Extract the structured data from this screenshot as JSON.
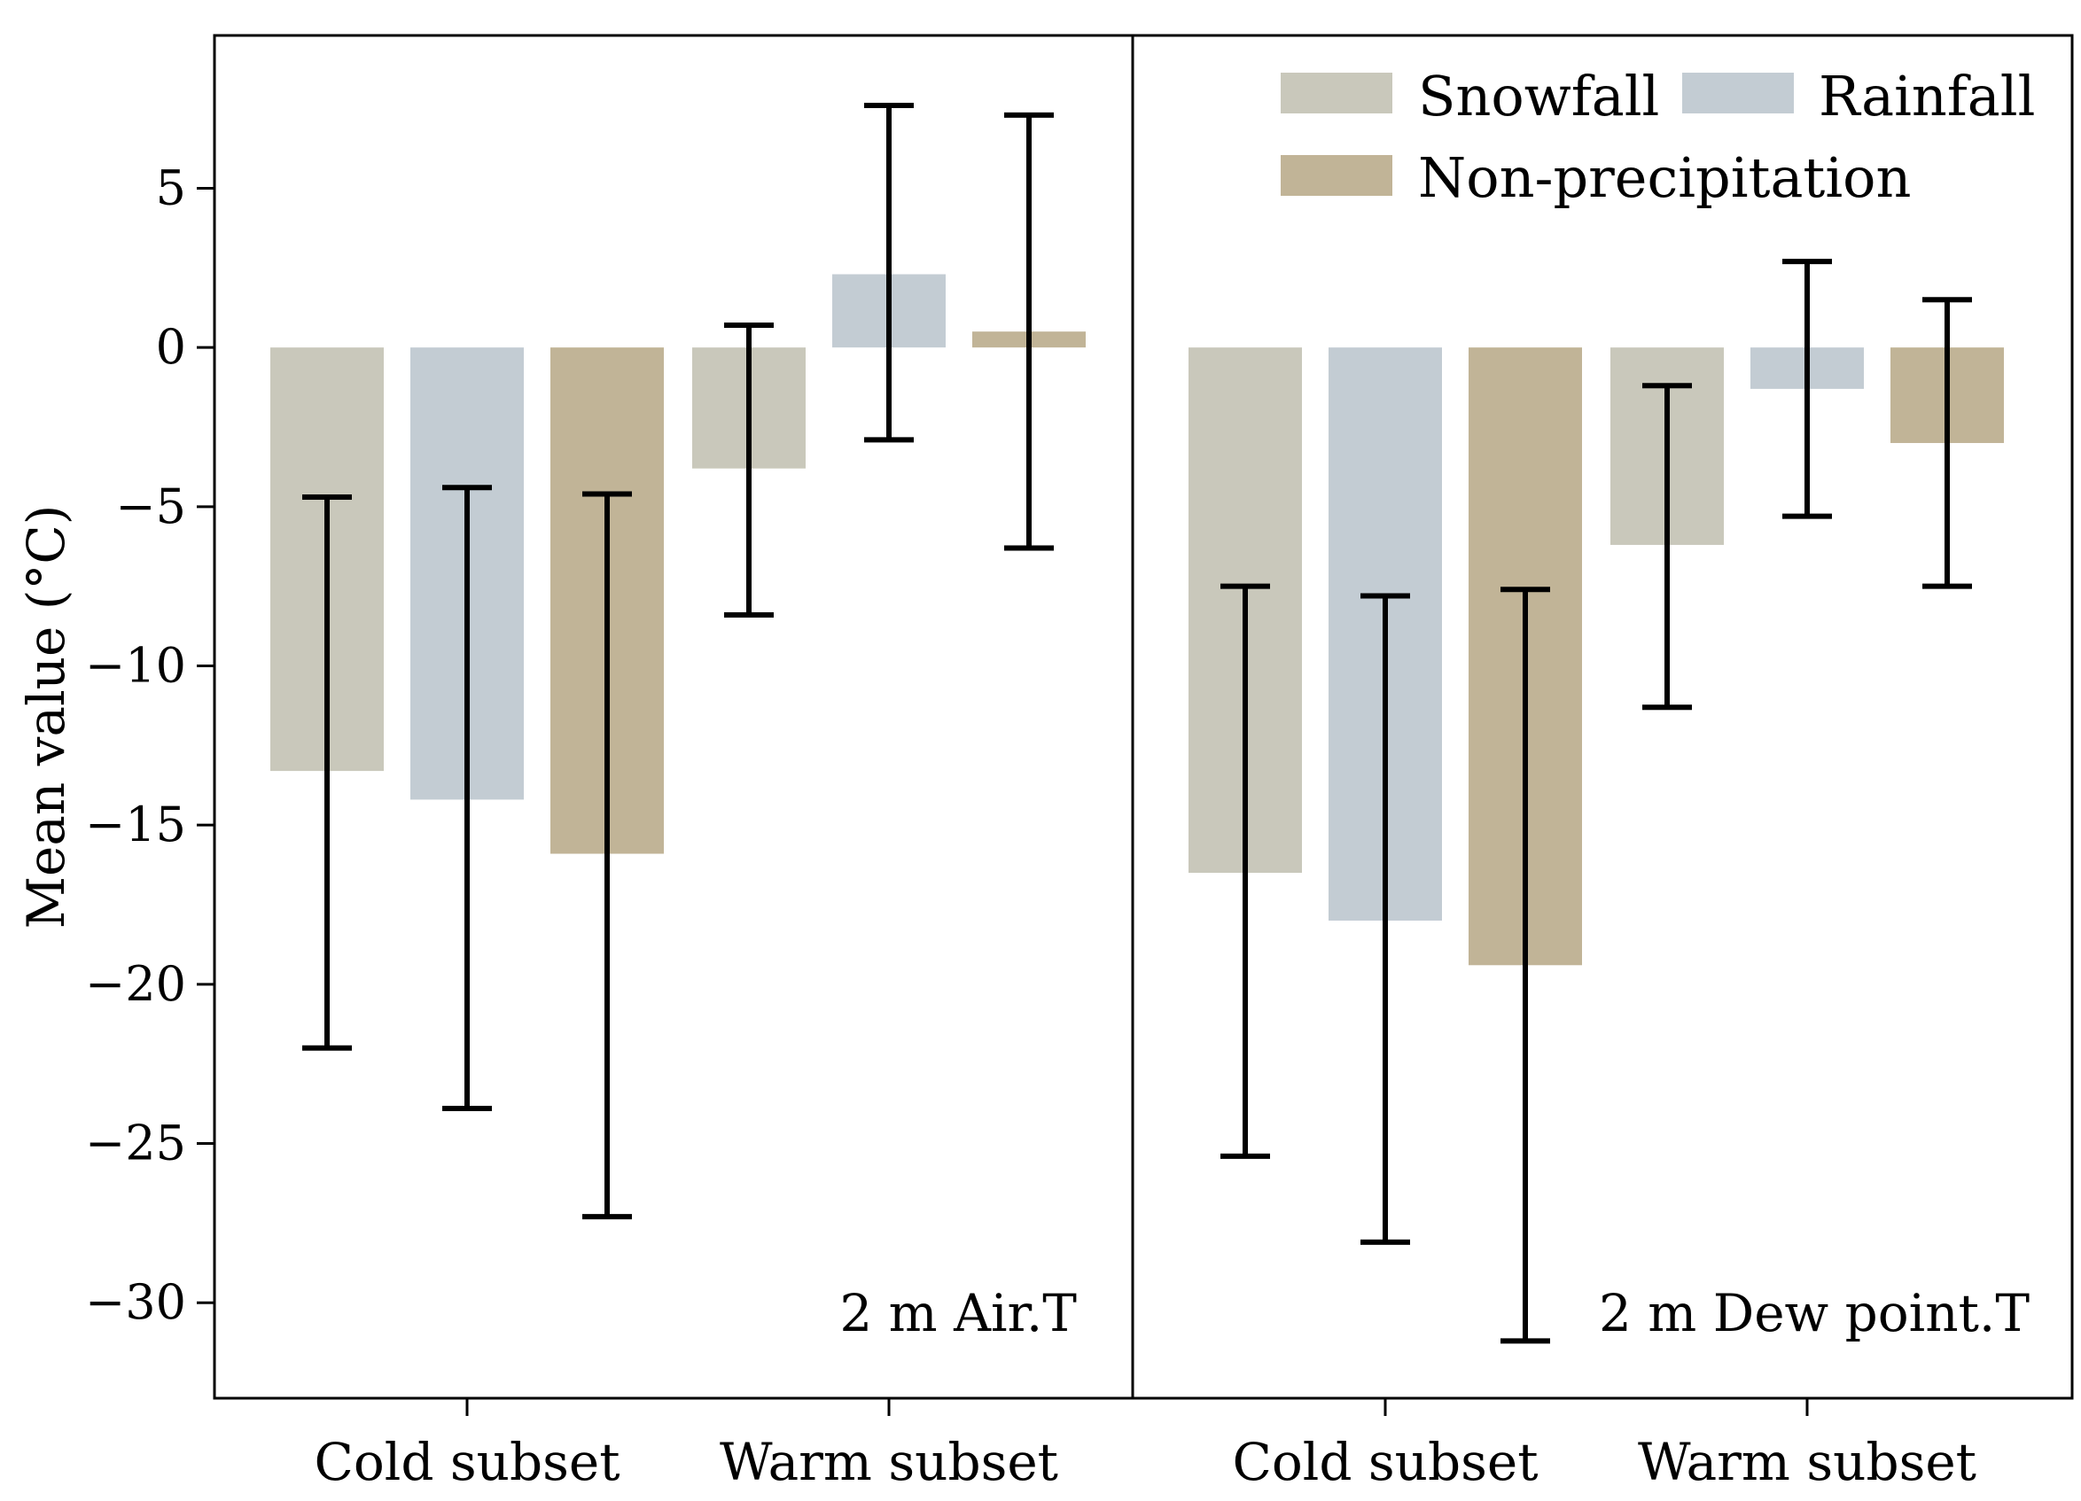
{
  "chart_data": {
    "type": "bar",
    "ylabel": "Mean value (°C)",
    "ylim": [
      -33,
      9.8
    ],
    "yticks": [
      5,
      0,
      -5,
      -10,
      -15,
      -20,
      -25,
      -30
    ],
    "ytick_labels": [
      "5",
      "0",
      "−5",
      "−10",
      "−15",
      "−20",
      "−25",
      "−30"
    ],
    "legend": {
      "position": "top-right",
      "entries": [
        {
          "name": "Snowfall",
          "color": "#c9c8bb"
        },
        {
          "name": "Rainfall",
          "color": "#c3ccd3"
        },
        {
          "name": "Non-precipitation",
          "color": "#c1b497"
        }
      ]
    },
    "panels": [
      {
        "label": "2 m Air.T",
        "categories": [
          "Cold subset",
          "Warm subset"
        ],
        "series": [
          {
            "name": "Snowfall",
            "values": [
              -13.3,
              -3.8
            ],
            "err_low": [
              -22.0,
              -8.4
            ],
            "err_high": [
              -4.7,
              0.7
            ]
          },
          {
            "name": "Rainfall",
            "values": [
              -14.2,
              2.3
            ],
            "err_low": [
              -23.9,
              -2.9
            ],
            "err_high": [
              -4.4,
              7.6
            ]
          },
          {
            "name": "Non-precipitation",
            "values": [
              -15.9,
              0.5
            ],
            "err_low": [
              -27.3,
              -6.3
            ],
            "err_high": [
              -4.6,
              7.3
            ]
          }
        ]
      },
      {
        "label": "2 m Dew point.T",
        "categories": [
          "Cold subset",
          "Warm subset"
        ],
        "series": [
          {
            "name": "Snowfall",
            "values": [
              -16.5,
              -6.2
            ],
            "err_low": [
              -25.4,
              -11.3
            ],
            "err_high": [
              -7.5,
              -1.2
            ]
          },
          {
            "name": "Rainfall",
            "values": [
              -18.0,
              -1.3
            ],
            "err_low": [
              -28.1,
              -5.3
            ],
            "err_high": [
              -7.8,
              2.7
            ]
          },
          {
            "name": "Non-precipitation",
            "values": [
              -19.4,
              -3.0
            ],
            "err_low": [
              -31.2,
              -7.5
            ],
            "err_high": [
              -7.6,
              1.5
            ]
          }
        ]
      }
    ]
  }
}
